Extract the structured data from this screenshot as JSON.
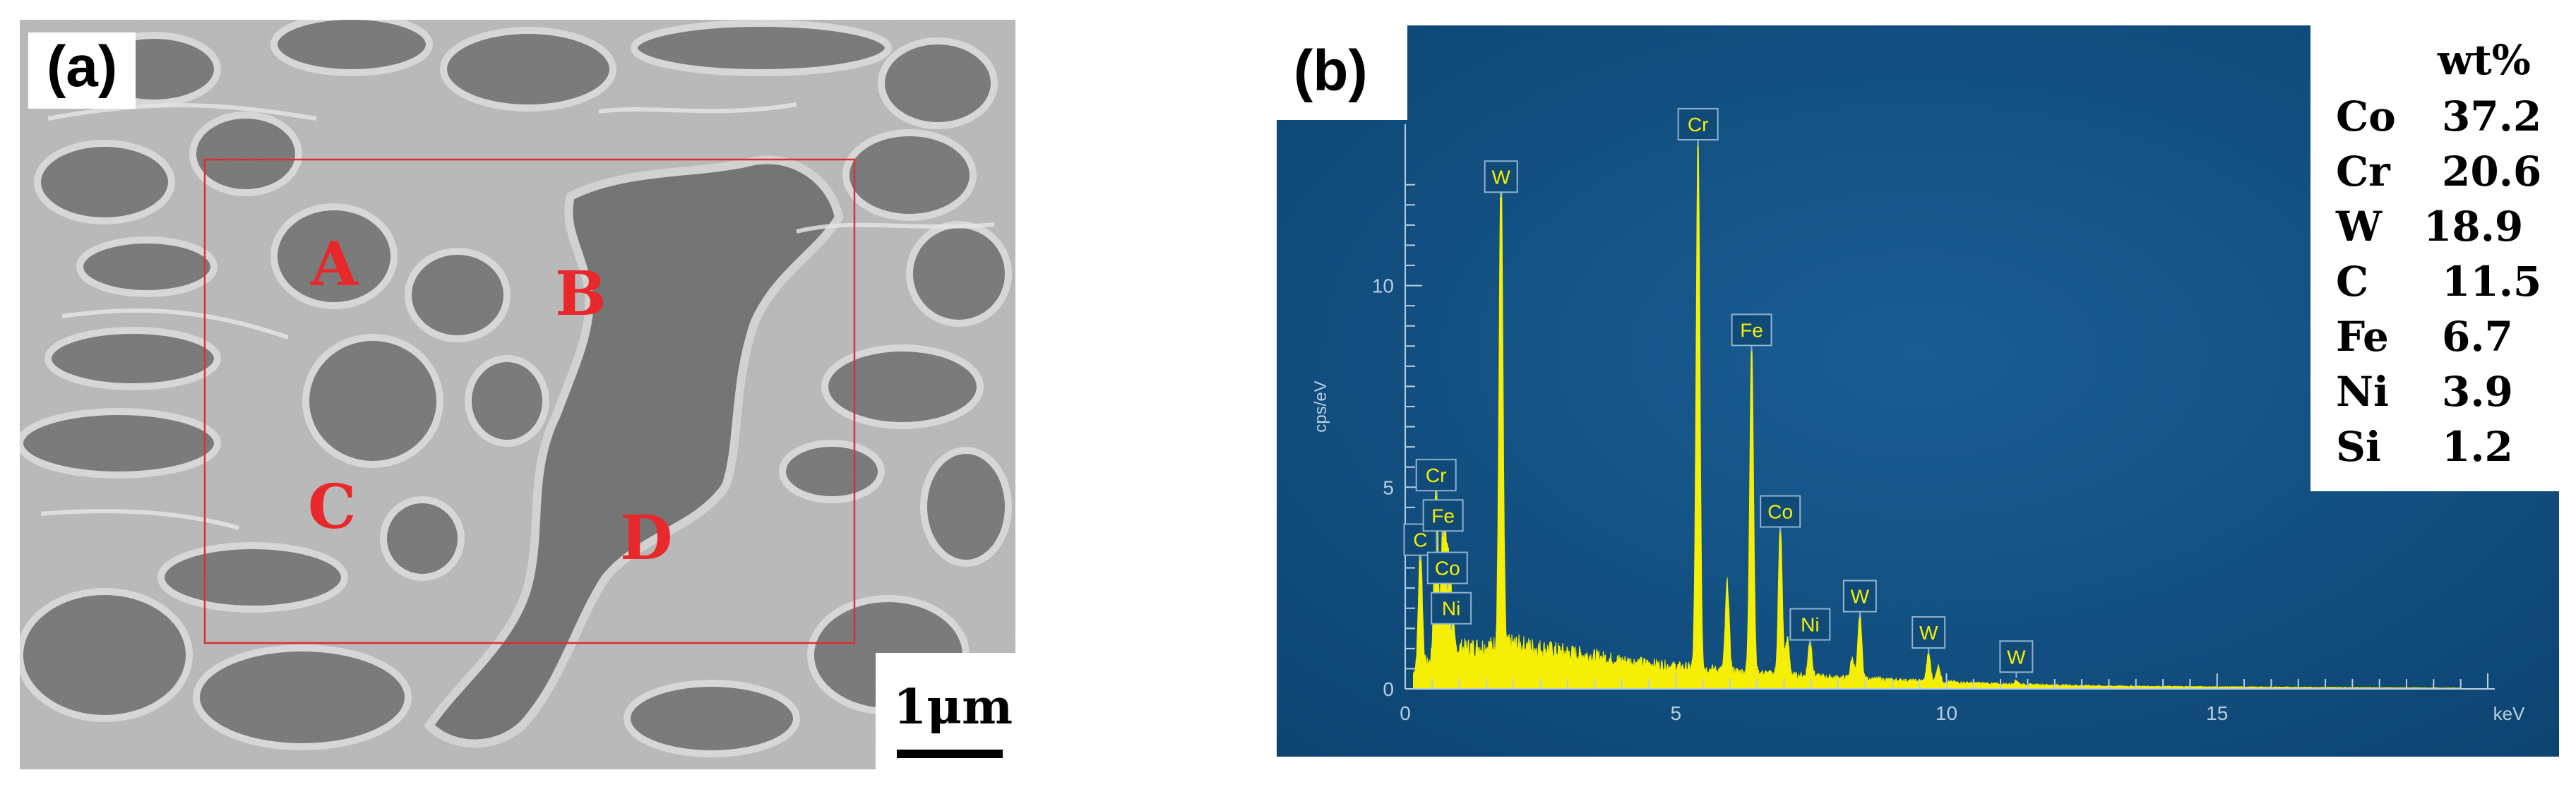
{
  "panel_a": {
    "label": "(a)",
    "phase_labels": [
      "A",
      "B",
      "C",
      "D"
    ],
    "scale_bar": "1μm"
  },
  "panel_b": {
    "label": "(b)",
    "table_header": "wt%",
    "composition": [
      {
        "element": "Co",
        "wt": "37.2"
      },
      {
        "element": "Cr",
        "wt": "20.6"
      },
      {
        "element": "W",
        "wt": "18.9"
      },
      {
        "element": "C",
        "wt": "11.5"
      },
      {
        "element": "Fe",
        "wt": "6.7"
      },
      {
        "element": "Ni",
        "wt": "3.9"
      },
      {
        "element": "Si",
        "wt": "1.2"
      }
    ]
  },
  "colors": {
    "spectrum_bg": "#0e4d7f",
    "spectrum_fill": "#f5ef05",
    "axis": "#b9cfe0",
    "phase_label": "#e8282a"
  },
  "chart_data": {
    "type": "area",
    "xlabel": "keV",
    "ylabel": "cps/eV",
    "xlim": [
      0,
      20
    ],
    "ylim": [
      0,
      14
    ],
    "x_ticks": [
      0,
      5,
      10,
      15
    ],
    "y_ticks": [
      0,
      5,
      10
    ],
    "peaks": [
      {
        "label": "C",
        "energy": 0.28,
        "height": 3.0
      },
      {
        "label": "Cr",
        "energy": 0.57,
        "height": 4.6
      },
      {
        "label": "Fe",
        "energy": 0.7,
        "height": 3.6
      },
      {
        "label": "Co",
        "energy": 0.78,
        "height": 2.3
      },
      {
        "label": "Ni",
        "energy": 0.85,
        "height": 1.3
      },
      {
        "label": "W",
        "energy": 1.77,
        "height": 12.0
      },
      {
        "label": "Cr",
        "energy": 5.41,
        "height": 13.3
      },
      {
        "label": "Fe",
        "energy": 6.4,
        "height": 8.2
      },
      {
        "label": "Co",
        "energy": 6.93,
        "height": 3.7
      },
      {
        "label": "Ni",
        "energy": 7.48,
        "height": 0.9
      },
      {
        "label": "W",
        "energy": 8.4,
        "height": 1.6
      },
      {
        "label": "W",
        "energy": 9.67,
        "height": 0.7
      },
      {
        "label": "W",
        "energy": 11.29,
        "height": 0.1
      }
    ],
    "unlabeled_peaks": [
      {
        "energy": 5.95,
        "height": 2.2
      },
      {
        "energy": 7.06,
        "height": 0.9
      },
      {
        "energy": 8.26,
        "height": 0.5
      },
      {
        "energy": 9.85,
        "height": 0.4
      }
    ],
    "background": [
      {
        "x": 0.2,
        "y": 0.5
      },
      {
        "x": 1.0,
        "y": 1.0
      },
      {
        "x": 2.0,
        "y": 1.1
      },
      {
        "x": 3.0,
        "y": 0.9
      },
      {
        "x": 4.0,
        "y": 0.7
      },
      {
        "x": 5.0,
        "y": 0.55
      },
      {
        "x": 6.0,
        "y": 0.45
      },
      {
        "x": 7.0,
        "y": 0.35
      },
      {
        "x": 8.0,
        "y": 0.28
      },
      {
        "x": 9.0,
        "y": 0.22
      },
      {
        "x": 10.0,
        "y": 0.17
      },
      {
        "x": 11.0,
        "y": 0.12
      },
      {
        "x": 13.0,
        "y": 0.07
      },
      {
        "x": 15.0,
        "y": 0.05
      },
      {
        "x": 18.0,
        "y": 0.03
      },
      {
        "x": 19.5,
        "y": 0.02
      }
    ]
  }
}
